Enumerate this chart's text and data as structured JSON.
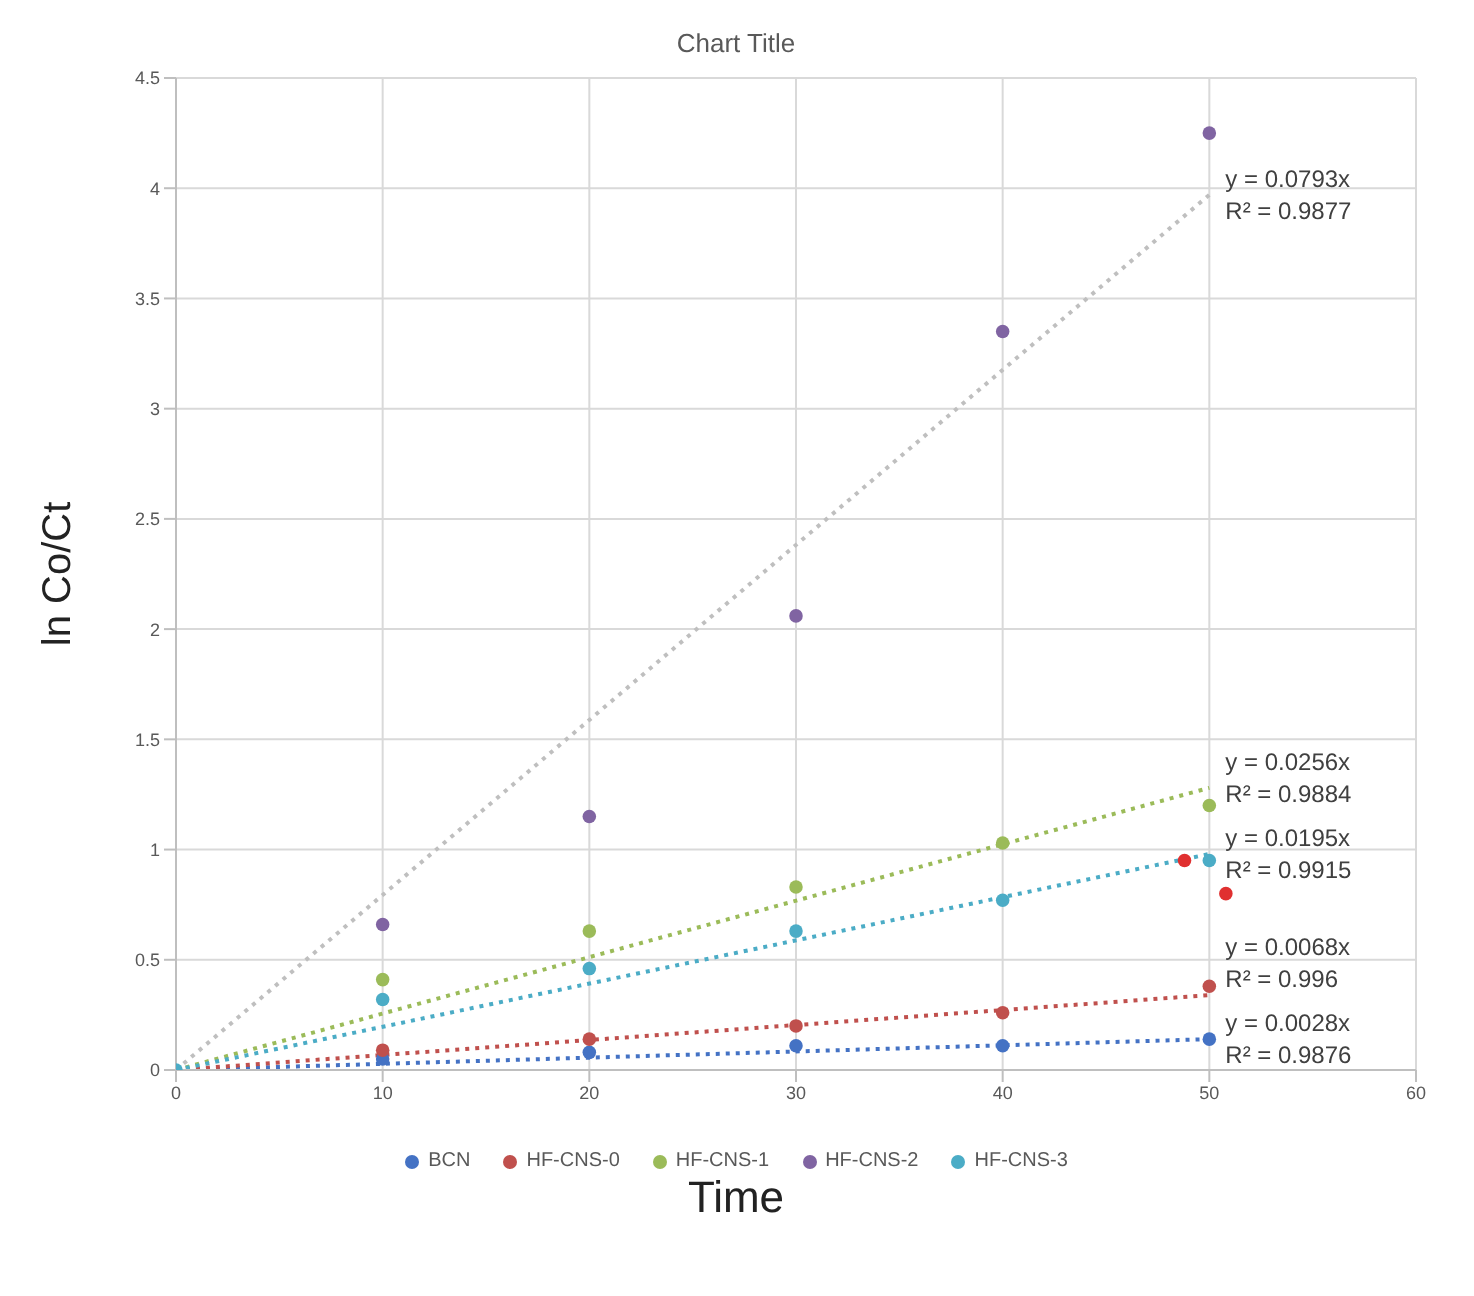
{
  "chart_data": {
    "type": "scatter",
    "title": "Chart Title",
    "xlabel": "Time",
    "ylabel": "ln Co/Ct",
    "xlim": [
      0,
      60
    ],
    "xticks": [
      0,
      10,
      20,
      30,
      40,
      50,
      60
    ],
    "ylim": [
      0,
      4.5
    ],
    "yticks": [
      0,
      0.5,
      1,
      1.5,
      2,
      2.5,
      3,
      3.5,
      4,
      4.5
    ],
    "grid": true,
    "legend": "bottom",
    "marker": "circle",
    "series": [
      {
        "name": "BCN",
        "color": "#4472c4",
        "x": [
          10,
          20,
          30,
          40,
          50
        ],
        "values": [
          0.05,
          0.08,
          0.11,
          0.11,
          0.14
        ]
      },
      {
        "name": "HF-CNS-0",
        "color": "#c0504d",
        "x": [
          10,
          20,
          30,
          40,
          50
        ],
        "values": [
          0.09,
          0.14,
          0.2,
          0.26,
          0.38
        ]
      },
      {
        "name": "HF-CNS-1",
        "color": "#9bbb59",
        "x": [
          10,
          20,
          30,
          40,
          50
        ],
        "values": [
          0.41,
          0.63,
          0.83,
          1.03,
          1.2
        ]
      },
      {
        "name": "HF-CNS-2",
        "color": "#8064a2",
        "x": [
          10,
          20,
          30,
          40,
          50
        ],
        "values": [
          0.66,
          1.15,
          2.06,
          3.35,
          4.25
        ]
      },
      {
        "name": "HF-CNS-3",
        "color": "#4bacc6",
        "x": [
          0,
          10,
          20,
          30,
          40,
          50
        ],
        "values": [
          0,
          0.32,
          0.46,
          0.63,
          0.77,
          0.95
        ]
      },
      {
        "color": "#e03030",
        "x": [
          48.8,
          50.8
        ],
        "values": [
          0.95,
          0.8
        ]
      },
      {
        "type": "line",
        "marker": "none",
        "color": "#4472c4",
        "line_style": "dotted",
        "x": [
          0,
          50
        ],
        "values": [
          0,
          0.14
        ]
      },
      {
        "type": "line",
        "marker": "none",
        "color": "#c0504d",
        "line_style": "dotted",
        "x": [
          0,
          50
        ],
        "values": [
          0,
          0.34
        ]
      },
      {
        "type": "line",
        "marker": "none",
        "color": "#9bbb59",
        "line_style": "dotted",
        "x": [
          0,
          50
        ],
        "values": [
          0,
          1.28
        ]
      },
      {
        "type": "line",
        "marker": "none",
        "color": "#bfbfbf",
        "line_style": "dotted",
        "x": [
          0,
          50
        ],
        "values": [
          0,
          3.97
        ]
      },
      {
        "type": "line",
        "marker": "none",
        "color": "#4bacc6",
        "line_style": "dotted",
        "x": [
          0,
          50
        ],
        "values": [
          0,
          0.98
        ]
      }
    ],
    "annotations": [
      "y = 0.0028x\nR² = 0.9876",
      "y = 0.0068x\nR² = 0.996",
      "y = 0.0256x\nR² = 0.9884",
      "y = 0.0793x\nR² = 0.9877",
      "y = 0.0195x\nR² = 0.9915"
    ]
  }
}
